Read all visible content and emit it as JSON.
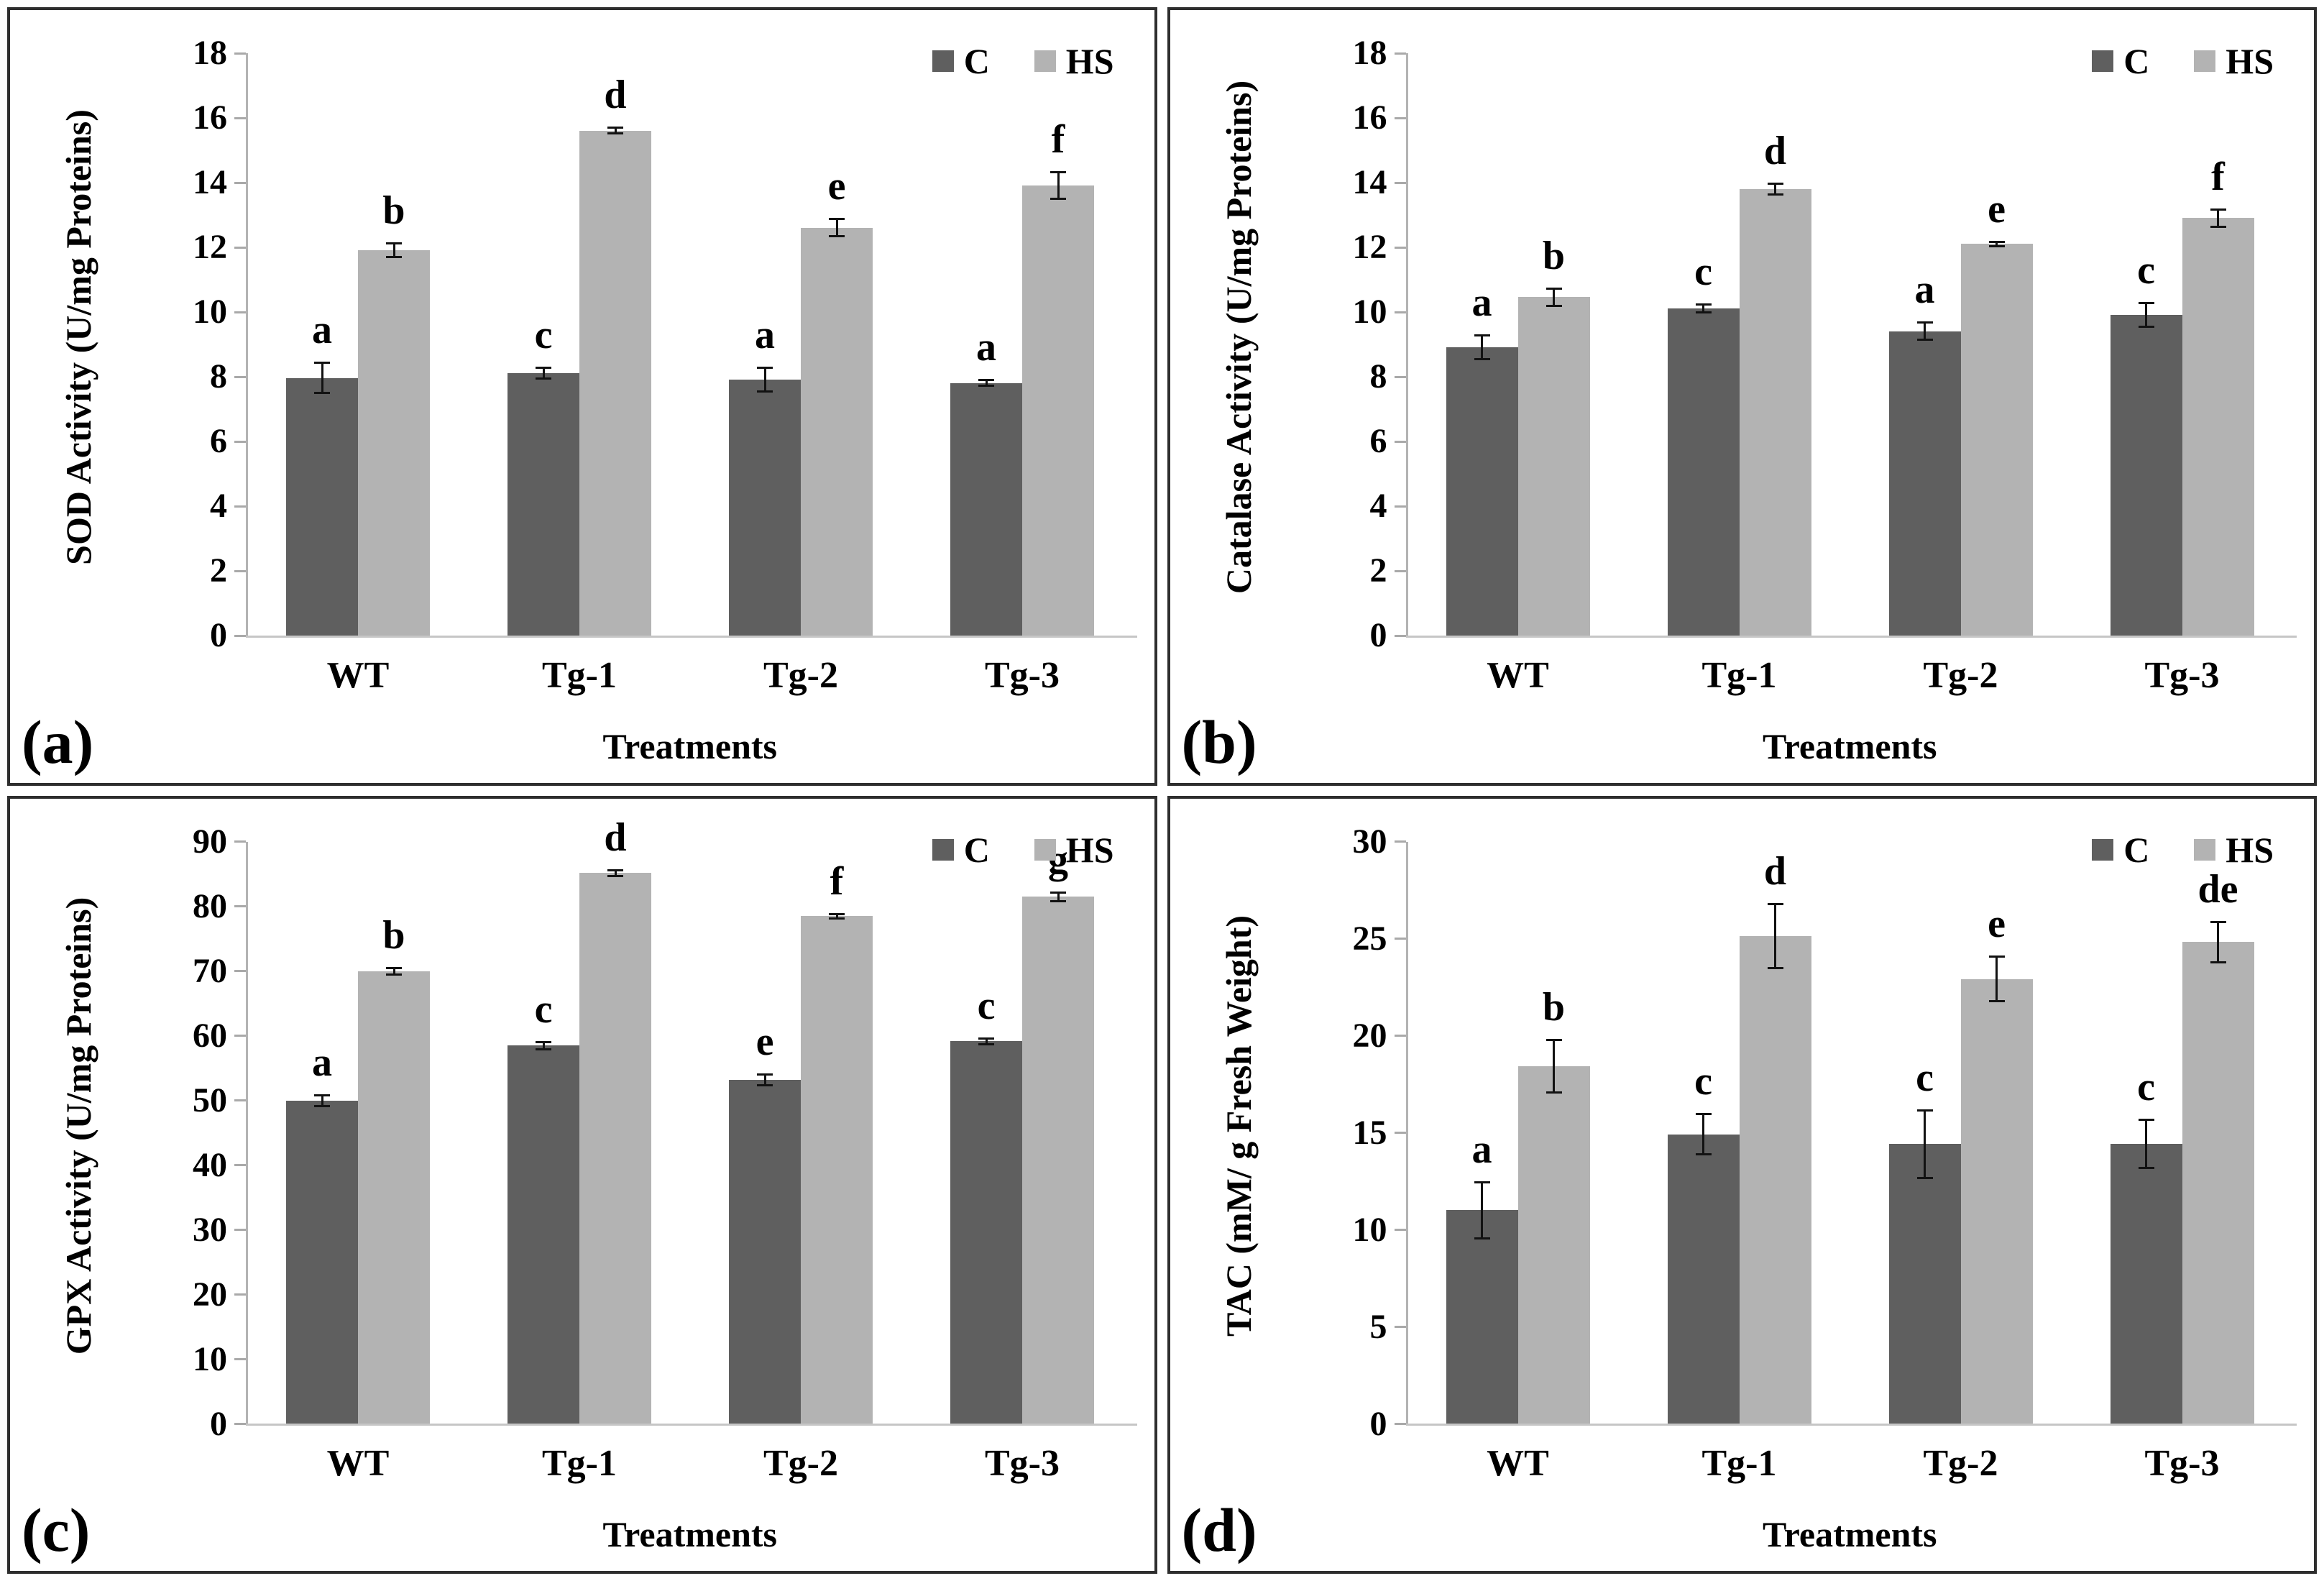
{
  "figure": {
    "background": "#ffffff",
    "panel_border_color": "#2e2e2e",
    "axis_color": "#b3b3b3",
    "tick_color": "#a9a9a9",
    "error_bar_color": "#121212",
    "text_color": "#000000"
  },
  "legend": {
    "c_label": "C",
    "hs_label": "HS"
  },
  "colors": {
    "c_bar": "#5f5f5f",
    "hs_bar": "#b3b3b3"
  },
  "chart_data": [
    {
      "type": "bar",
      "panel_letter": "(a)",
      "ylabel": "SOD Activity (U/mg Proteins)",
      "xlabel": "Treatments",
      "categories": [
        "WT",
        "Tg-1",
        "Tg-2",
        "Tg-3"
      ],
      "ylim": [
        0,
        18
      ],
      "ystep": 2,
      "grid": false,
      "legend_position": "top-right",
      "series": [
        {
          "name": "C",
          "color_key": "c_bar",
          "values": [
            7.95,
            8.1,
            7.9,
            7.8
          ],
          "errors": [
            0.5,
            0.2,
            0.4,
            0.12
          ],
          "sig_letters": [
            "a",
            "c",
            "a",
            "a"
          ]
        },
        {
          "name": "HS",
          "color_key": "hs_bar",
          "values": [
            11.9,
            15.6,
            12.6,
            13.9
          ],
          "errors": [
            0.25,
            0.12,
            0.3,
            0.45
          ],
          "sig_letters": [
            "b",
            "d",
            "e",
            "f"
          ]
        }
      ]
    },
    {
      "type": "bar",
      "panel_letter": "(b)",
      "ylabel": "Catalase Activity (U/mg Proteins)",
      "xlabel": "Treatments",
      "categories": [
        "WT",
        "Tg-1",
        "Tg-2",
        "Tg-3"
      ],
      "ylim": [
        0,
        18
      ],
      "ystep": 2,
      "grid": false,
      "legend_position": "top-right",
      "series": [
        {
          "name": "C",
          "color_key": "c_bar",
          "values": [
            8.9,
            10.1,
            9.4,
            9.9
          ],
          "errors": [
            0.4,
            0.15,
            0.3,
            0.4
          ],
          "sig_letters": [
            "a",
            "c",
            "a",
            "c"
          ]
        },
        {
          "name": "HS",
          "color_key": "hs_bar",
          "values": [
            10.45,
            13.8,
            12.1,
            12.9
          ],
          "errors": [
            0.3,
            0.2,
            0.1,
            0.3
          ],
          "sig_letters": [
            "b",
            "d",
            "e",
            "f"
          ]
        }
      ]
    },
    {
      "type": "bar",
      "panel_letter": "(c)",
      "ylabel": "GPX Activity (U/mg Proteins)",
      "xlabel": "Treatments",
      "categories": [
        "WT",
        "Tg-1",
        "Tg-2",
        "Tg-3"
      ],
      "ylim": [
        0,
        90
      ],
      "ystep": 10,
      "grid": false,
      "legend_position": "top-right",
      "series": [
        {
          "name": "C",
          "color_key": "c_bar",
          "values": [
            49.9,
            58.4,
            53.1,
            59.1
          ],
          "errors": [
            1.0,
            0.7,
            1.0,
            0.6
          ],
          "sig_letters": [
            "a",
            "c",
            "e",
            "c"
          ]
        },
        {
          "name": "HS",
          "color_key": "hs_bar",
          "values": [
            69.9,
            85.1,
            78.4,
            81.4
          ],
          "errors": [
            0.7,
            0.6,
            0.5,
            0.8
          ],
          "sig_letters": [
            "b",
            "d",
            "f",
            "g"
          ]
        }
      ]
    },
    {
      "type": "bar",
      "panel_letter": "(d)",
      "ylabel": "TAC (mM/ g Fresh Weight)",
      "xlabel": "Treatments",
      "categories": [
        "WT",
        "Tg-1",
        "Tg-2",
        "Tg-3"
      ],
      "ylim": [
        0,
        30
      ],
      "ystep": 5,
      "grid": false,
      "legend_position": "top-right",
      "series": [
        {
          "name": "C",
          "color_key": "c_bar",
          "values": [
            11.0,
            14.9,
            14.4,
            14.4
          ],
          "errors": [
            1.5,
            1.1,
            1.8,
            1.3
          ],
          "sig_letters": [
            "a",
            "c",
            "c",
            "c"
          ]
        },
        {
          "name": "HS",
          "color_key": "hs_bar",
          "values": [
            18.4,
            25.1,
            22.9,
            24.8
          ],
          "errors": [
            1.4,
            1.7,
            1.2,
            1.1
          ],
          "sig_letters": [
            "b",
            "d",
            "e",
            "de"
          ]
        }
      ]
    }
  ]
}
